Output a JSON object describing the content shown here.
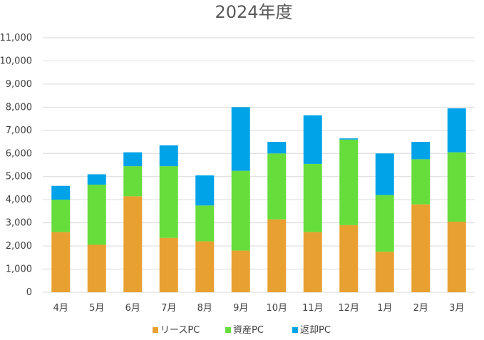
{
  "chart_data": {
    "type": "bar",
    "stacked": true,
    "title": "2024年度",
    "xlabel": "",
    "ylabel": "",
    "ylim": [
      0,
      11000
    ],
    "ytick_step": 1000,
    "ytick_labels": [
      "0",
      "1,000",
      "2,000",
      "3,000",
      "4,000",
      "5,000",
      "6,000",
      "7,000",
      "8,000",
      "9,000",
      "10,000",
      "11,000"
    ],
    "grid": true,
    "legend_position": "bottom",
    "categories": [
      "4月",
      "5月",
      "6月",
      "7月",
      "8月",
      "9月",
      "10月",
      "11月",
      "12月",
      "1月",
      "2月",
      "3月"
    ],
    "series": [
      {
        "name": "リースPC",
        "color": "#e8a030",
        "values": [
          2600,
          2050,
          4150,
          2350,
          2200,
          1800,
          3150,
          2600,
          2900,
          1750,
          3800,
          3050
        ]
      },
      {
        "name": "資産PC",
        "color": "#66dd3a",
        "values": [
          1400,
          2600,
          1300,
          3100,
          1550,
          3450,
          2850,
          2950,
          3700,
          2450,
          1950,
          3000
        ]
      },
      {
        "name": "返却PC",
        "color": "#00a2e8",
        "values": [
          600,
          450,
          600,
          900,
          1300,
          2750,
          500,
          2100,
          50,
          1800,
          750,
          1900
        ]
      }
    ]
  }
}
